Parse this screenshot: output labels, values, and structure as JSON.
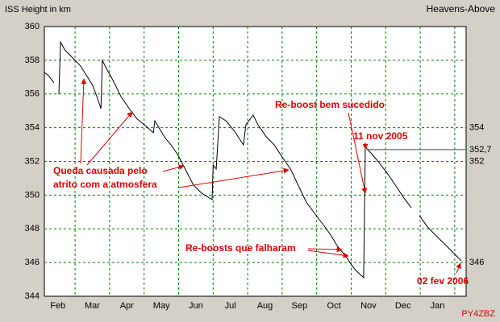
{
  "chart_data": {
    "type": "line",
    "title": "ISS Height in km",
    "source": "Heavens-Above",
    "credit": "PY4ZBZ",
    "xlim": [
      1.11,
      13.33
    ],
    "xticks": [
      {
        "value": 1.5,
        "label": "Feb"
      },
      {
        "value": 2.5,
        "label": "Mar"
      },
      {
        "value": 3.5,
        "label": "Apr"
      },
      {
        "value": 4.5,
        "label": "May"
      },
      {
        "value": 5.5,
        "label": "Jun"
      },
      {
        "value": 6.5,
        "label": "Jul"
      },
      {
        "value": 7.5,
        "label": "Aug"
      },
      {
        "value": 8.5,
        "label": "Sep"
      },
      {
        "value": 9.5,
        "label": "Oct"
      },
      {
        "value": 10.5,
        "label": "Nov"
      },
      {
        "value": 11.5,
        "label": "Dec"
      },
      {
        "value": 12.5,
        "label": "Jan"
      }
    ],
    "ylim": [
      344,
      360
    ],
    "yticks": [
      344,
      346,
      348,
      350,
      352,
      354,
      356,
      358,
      360
    ],
    "grid": true,
    "series": [
      {
        "color": "#000000",
        "x": [
          1.11,
          1.23,
          1.39,
          null,
          1.53,
          1.58,
          1.7,
          1.93,
          2.16,
          2.35,
          2.51,
          2.63,
          2.75,
          2.79,
          2.91,
          3.1,
          3.33,
          3.57,
          3.8,
          4.03,
          4.27,
          4.31,
          4.45,
          4.62,
          4.78,
          4.97,
          5.25,
          5.43,
          5.67,
          5.97,
          6.0,
          6.09,
          6.18,
          6.37,
          6.6,
          6.88,
          6.95,
          7.16,
          7.3,
          7.54,
          7.77,
          8.0,
          8.24,
          8.52,
          8.71,
          8.94,
          9.17,
          9.41,
          9.59,
          9.87,
          10.11,
          10.36,
          10.41,
          10.57,
          10.81,
          11.04,
          11.28,
          11.51,
          11.74,
          null,
          11.98,
          12.21,
          12.44,
          12.68,
          12.91,
          13.19
        ],
        "values": [
          357.28,
          357.09,
          356.66,
          null,
          355.99,
          359.09,
          358.62,
          358.14,
          357.66,
          357.04,
          356.51,
          355.85,
          355.13,
          357.99,
          357.52,
          356.8,
          355.85,
          355.13,
          354.51,
          354.13,
          353.7,
          354.41,
          353.93,
          353.36,
          352.98,
          352.41,
          351.31,
          350.59,
          350.11,
          349.73,
          351.79,
          351.55,
          354.65,
          354.41,
          353.84,
          352.98,
          354.17,
          354.75,
          354.17,
          353.46,
          352.98,
          352.26,
          351.55,
          350.35,
          349.54,
          348.92,
          348.3,
          347.63,
          347.01,
          346.29,
          345.58,
          345.1,
          352.84,
          352.5,
          351.93,
          351.31,
          350.59,
          349.88,
          349.25,
          null,
          348.78,
          348.11,
          347.63,
          347.15,
          346.68,
          346.1
        ]
      }
    ],
    "right_labels": [
      {
        "value": 354,
        "label": "354"
      },
      {
        "value": 352.7,
        "label": "352,7"
      },
      {
        "value": 352,
        "label": "352"
      },
      {
        "value": 346,
        "label": "346"
      }
    ],
    "reference_line": {
      "value": 352.7,
      "color": "#008000"
    },
    "annotations": [
      "Queda causada pelo",
      "atrito com a atmosfera",
      "Re-boost bem sucedido",
      "11 nov 2005",
      "Re-boosts que falharam",
      "02 fev 2006"
    ]
  }
}
